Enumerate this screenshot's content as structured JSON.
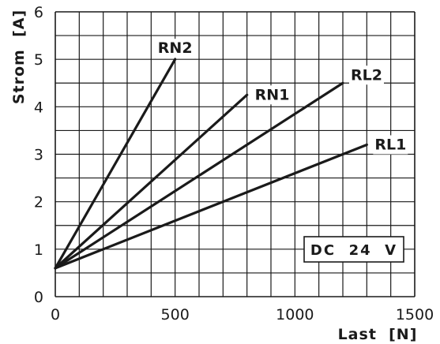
{
  "chart_data": {
    "type": "line",
    "xlabel": "Last  [N]",
    "ylabel": "Strom  [A]",
    "xlim": [
      0,
      1500
    ],
    "ylim": [
      0,
      6
    ],
    "x_ticks": [
      0,
      500,
      1000,
      1500
    ],
    "y_ticks": [
      0,
      1,
      2,
      3,
      4,
      5,
      6
    ],
    "x_grid_step": 100,
    "y_grid_step": 0.5,
    "grid": true,
    "series": [
      {
        "name": "RN2",
        "x": [
          0,
          500
        ],
        "y": [
          0.6,
          5.0
        ]
      },
      {
        "name": "RN1",
        "x": [
          0,
          800
        ],
        "y": [
          0.6,
          4.25
        ]
      },
      {
        "name": "RL2",
        "x": [
          0,
          1200
        ],
        "y": [
          0.6,
          4.5
        ]
      },
      {
        "name": "RL1",
        "x": [
          0,
          1300
        ],
        "y": [
          0.6,
          3.2
        ]
      }
    ],
    "annotation": "DC  24  V"
  }
}
